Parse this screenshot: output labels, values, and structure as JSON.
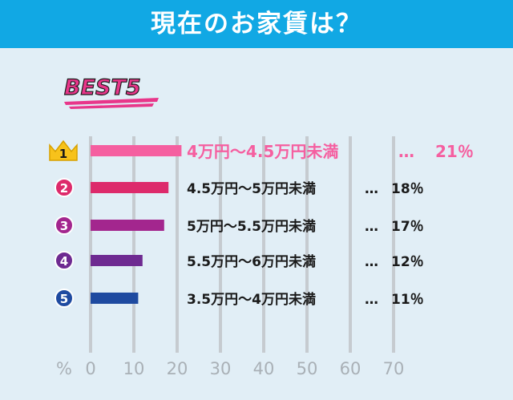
{
  "header": {
    "title": "現在のお家賃は？",
    "bg_color": "#11a8e4"
  },
  "best_label": "BEST5",
  "chart_data": {
    "type": "bar",
    "orientation": "horizontal",
    "title": "現在のお家賃は？",
    "xlabel": "%",
    "xlim": [
      0,
      70
    ],
    "x_ticks": [
      "0",
      "10",
      "20",
      "30",
      "40",
      "50",
      "60",
      "70"
    ],
    "grid": true,
    "categories": [
      "4万円～4.5万円未満",
      "4.5万円～5万円未満",
      "5万円～5.5万円未満",
      "5.5万円～6万円未満",
      "3.5万円～4万円未満"
    ],
    "values": [
      21,
      18,
      17,
      12,
      11
    ],
    "value_labels": [
      "21％",
      "18％",
      "17％",
      "12％",
      "11％"
    ],
    "ranks": [
      "1",
      "2",
      "3",
      "4",
      "5"
    ],
    "colors": [
      "#f55fa0",
      "#dd2a6b",
      "#a3268e",
      "#6e2a91",
      "#1e4aa0"
    ],
    "separator": "…"
  }
}
